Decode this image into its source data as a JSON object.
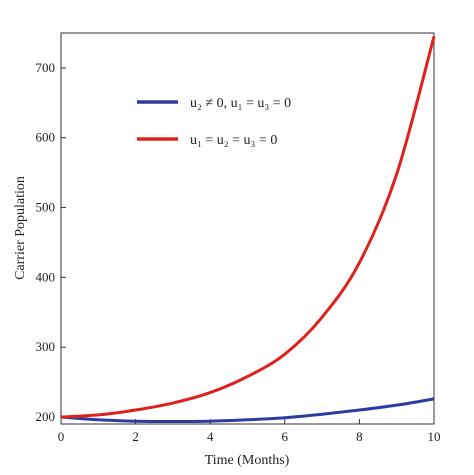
{
  "chart_data": {
    "type": "line",
    "title": "",
    "xlabel": "Time (Months)",
    "ylabel": "Carrier Population",
    "xlim": [
      0,
      10
    ],
    "ylim": [
      190,
      750
    ],
    "xticks": [
      0,
      2,
      4,
      6,
      8,
      10
    ],
    "yticks": [
      200,
      300,
      400,
      500,
      600,
      700
    ],
    "grid": false,
    "legend_position": "top-right",
    "series": [
      {
        "name": "u₂ ≠ 0, u₁ = u₃ = 0",
        "color": "#2b3ea0",
        "x": [
          0,
          1,
          2,
          3,
          4,
          5,
          6,
          7,
          8,
          9,
          10
        ],
        "y": [
          200,
          196,
          194,
          193.5,
          194,
          196,
          199,
          204,
          210,
          217,
          226
        ]
      },
      {
        "name": "u₁ = u₂ = u₃ = 0",
        "color": "#e0201b",
        "x": [
          0,
          1,
          2,
          3,
          4,
          5,
          6,
          7,
          8,
          9,
          10
        ],
        "y": [
          200,
          203,
          210,
          220,
          235,
          258,
          290,
          343,
          421,
          548,
          745
        ]
      }
    ]
  }
}
